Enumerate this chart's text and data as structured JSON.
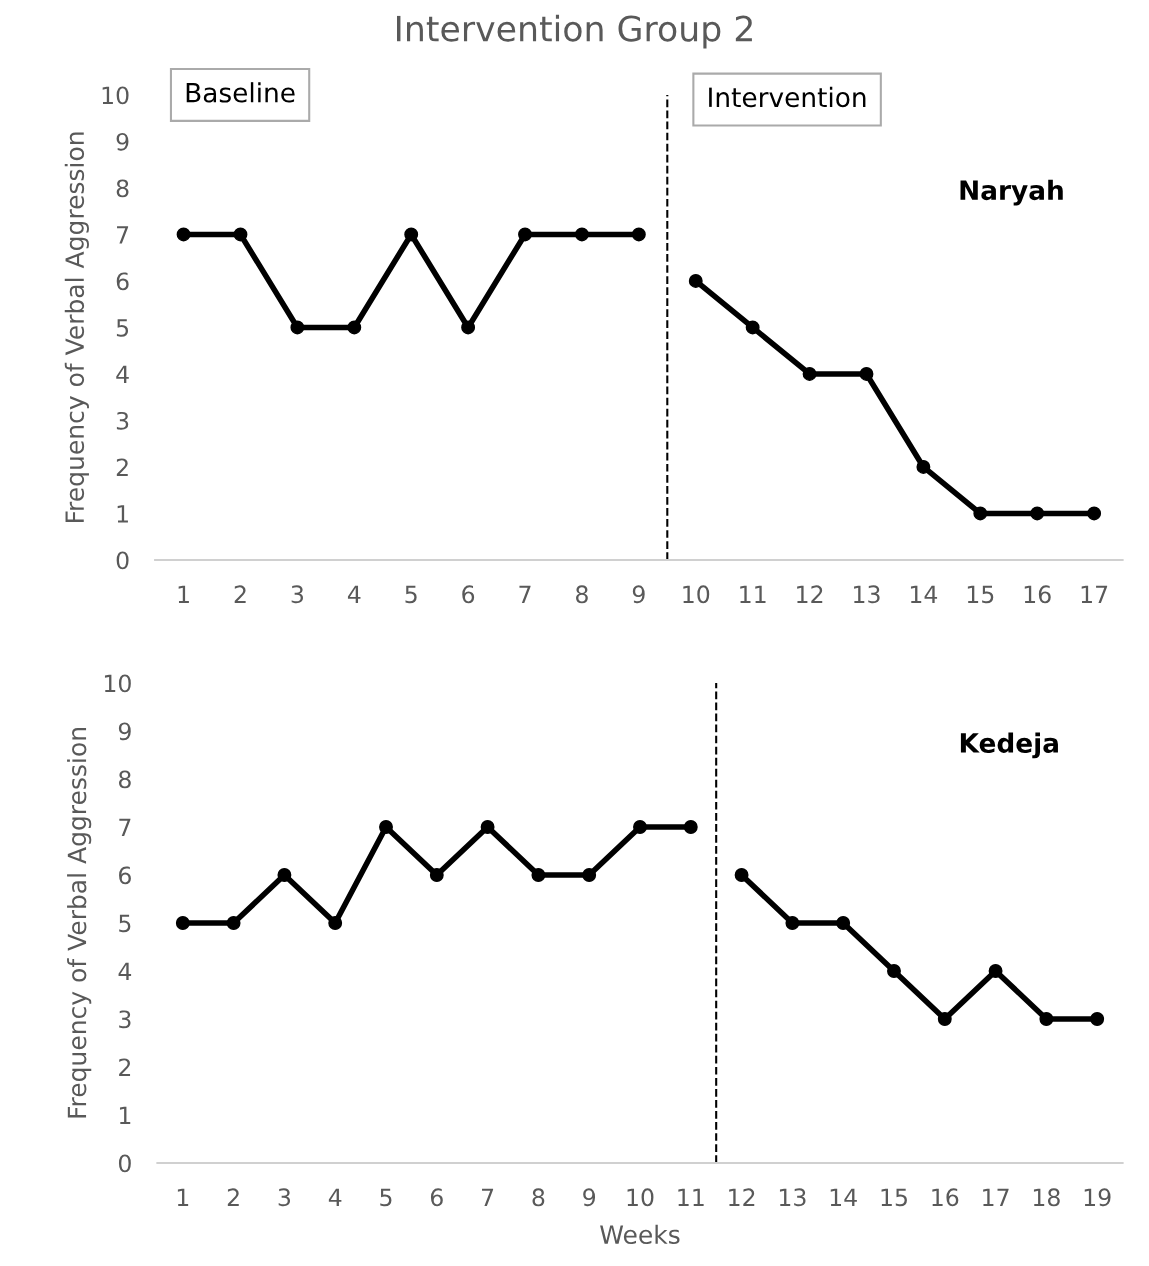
{
  "chart_data": [
    {
      "type": "line",
      "title": "Intervention Group 2",
      "ylabel": "Frequency of Verbal Aggression",
      "series": [
        {
          "color": "#000000",
          "x": [
            1,
            2,
            3,
            4,
            5,
            6,
            7,
            8,
            9
          ],
          "values": [
            7,
            7,
            5,
            5,
            7,
            5,
            7,
            7,
            7
          ]
        },
        {
          "color": "#000000",
          "x": [
            10,
            11,
            12,
            13,
            14,
            15,
            16,
            17
          ],
          "values": [
            6,
            5,
            4,
            4,
            2,
            1,
            1,
            1
          ]
        }
      ],
      "xlim": [
        0.5,
        17.5
      ],
      "xticks": [
        1,
        2,
        3,
        4,
        5,
        6,
        7,
        8,
        9,
        10,
        11,
        12,
        13,
        14,
        15,
        16,
        17
      ],
      "ylim": [
        0,
        10
      ],
      "yticks": [
        0,
        1,
        2,
        3,
        4,
        5,
        6,
        7,
        8,
        9,
        10
      ],
      "ref_lines": [
        {
          "axis": "x",
          "value": 9.5,
          "color": "#000000",
          "line_style": "dashed"
        }
      ],
      "annotations": [
        "Baseline",
        "Intervention",
        "Naryah"
      ],
      "grid": false,
      "legend": false,
      "marker": "circle",
      "line_style": "solid"
    },
    {
      "type": "line",
      "xlabel": "Weeks",
      "ylabel": "Frequency of Verbal Aggression",
      "series": [
        {
          "color": "#000000",
          "x": [
            1,
            2,
            3,
            4,
            5,
            6,
            7,
            8,
            9,
            10,
            11
          ],
          "values": [
            5,
            5,
            6,
            5,
            7,
            6,
            7,
            6,
            6,
            7,
            7
          ]
        },
        {
          "color": "#000000",
          "x": [
            12,
            13,
            14,
            15,
            16,
            17,
            18,
            19
          ],
          "values": [
            6,
            5,
            5,
            4,
            3,
            4,
            3,
            3
          ]
        }
      ],
      "xlim": [
        0.5,
        19.5
      ],
      "xticks": [
        1,
        2,
        3,
        4,
        5,
        6,
        7,
        8,
        9,
        10,
        11,
        12,
        13,
        14,
        15,
        16,
        17,
        18,
        19
      ],
      "ylim": [
        0,
        10
      ],
      "yticks": [
        0,
        1,
        2,
        3,
        4,
        5,
        6,
        7,
        8,
        9,
        10
      ],
      "ref_lines": [
        {
          "axis": "x",
          "value": 11.5,
          "color": "#000000",
          "line_style": "dashed"
        }
      ],
      "annotations": [
        "Kedeja"
      ],
      "grid": false,
      "legend": false,
      "marker": "circle",
      "line_style": "solid"
    }
  ]
}
